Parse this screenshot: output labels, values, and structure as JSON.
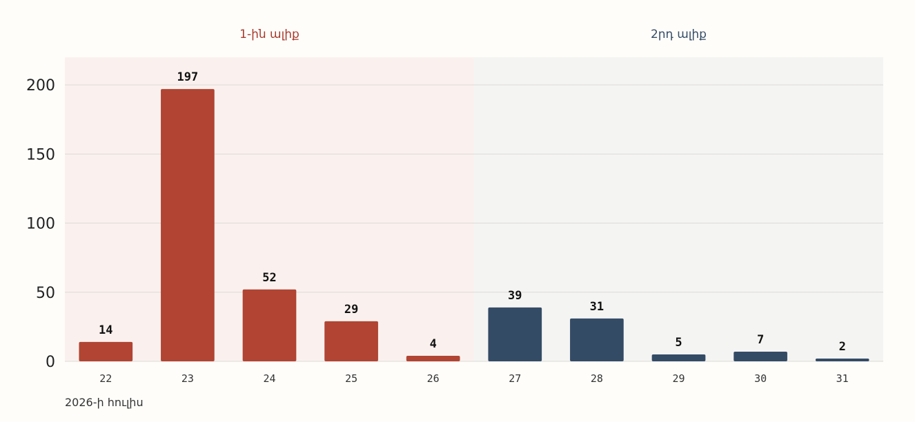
{
  "chart_data": {
    "type": "bar",
    "categories": [
      "22",
      "23",
      "24",
      "25",
      "26",
      "27",
      "28",
      "29",
      "30",
      "31"
    ],
    "values": [
      14,
      197,
      52,
      29,
      4,
      39,
      31,
      5,
      7,
      2
    ],
    "groups": [
      {
        "label": "1-ին ալիք",
        "categories": [
          "22",
          "23",
          "24",
          "25",
          "26"
        ],
        "color": "#b14433",
        "label_color": "#a8392b",
        "bg_color": "#faf1ee"
      },
      {
        "label": "2րդ ալիք",
        "categories": [
          "27",
          "28",
          "29",
          "30",
          "31"
        ],
        "color": "#344b66",
        "label_color": "#344b66",
        "bg_color": "#f4f4f3"
      }
    ],
    "xlabel": "2026-ի հուլիս",
    "ylabel": "",
    "ylim": [
      0,
      220
    ],
    "yticks": [
      0,
      50,
      100,
      150,
      200
    ],
    "grid": true,
    "data_labels": true
  }
}
